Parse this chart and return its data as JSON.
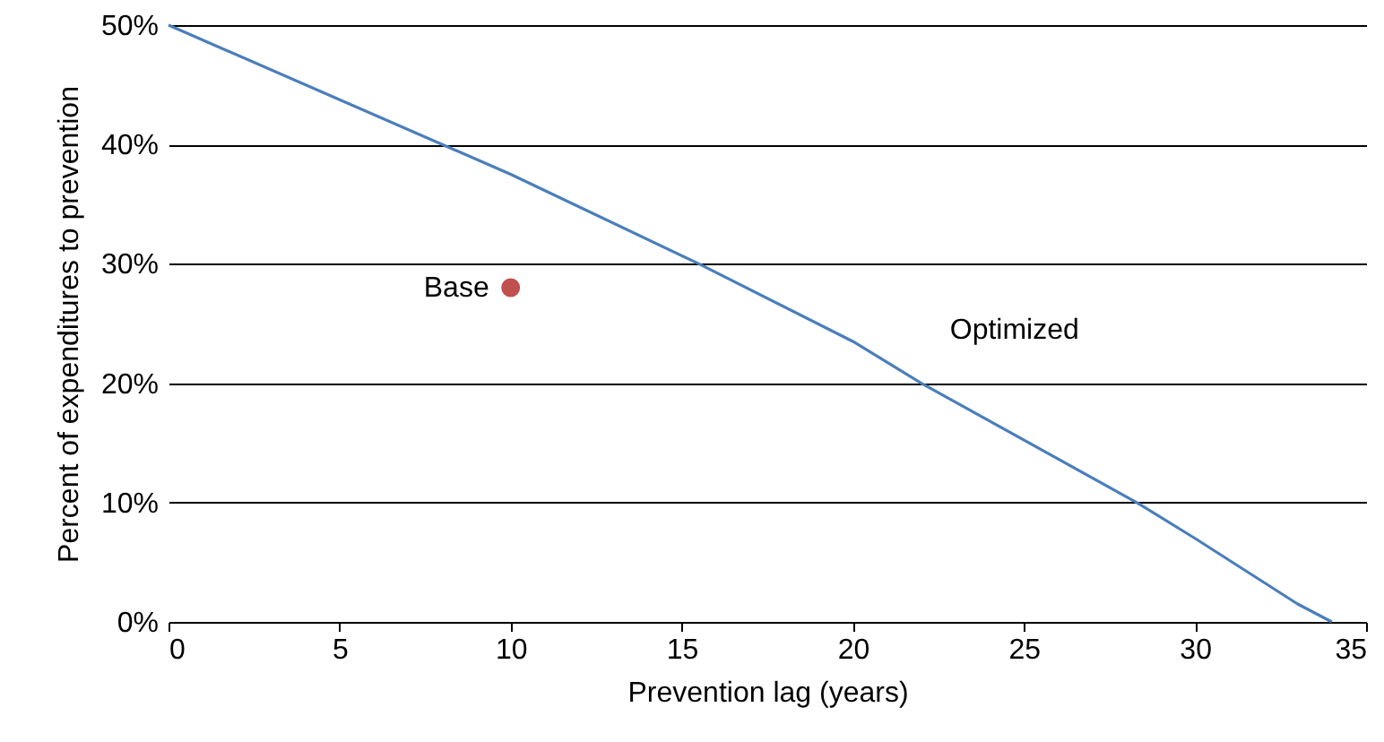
{
  "chart_data": {
    "type": "line",
    "xlabel": "Prevention lag (years)",
    "ylabel": "Percent of expenditures to prevention",
    "xlim": [
      0,
      35
    ],
    "xticks": [
      0,
      5,
      10,
      15,
      20,
      25,
      30,
      35
    ],
    "ylim": [
      0,
      50
    ],
    "yticks": [
      {
        "value": 0,
        "label": "0%"
      },
      {
        "value": 10,
        "label": "10%"
      },
      {
        "value": 20,
        "label": "20%"
      },
      {
        "value": 30,
        "label": "30%"
      },
      {
        "value": 40,
        "label": "40%"
      },
      {
        "value": 50,
        "label": "50%"
      }
    ],
    "grid": "y",
    "legend": false,
    "series": [
      {
        "name": "Optimized",
        "color": "#4a7ebb",
        "x": [
          0,
          10,
          15.5,
          20,
          22,
          28.3,
          30,
          33,
          34
        ],
        "values": [
          50,
          37.5,
          30,
          23.5,
          20,
          10,
          7,
          1.5,
          0
        ]
      },
      {
        "name": "Base",
        "type": "scatter",
        "color": "#c0504d",
        "x": [
          10
        ],
        "values": [
          28
        ]
      }
    ]
  }
}
